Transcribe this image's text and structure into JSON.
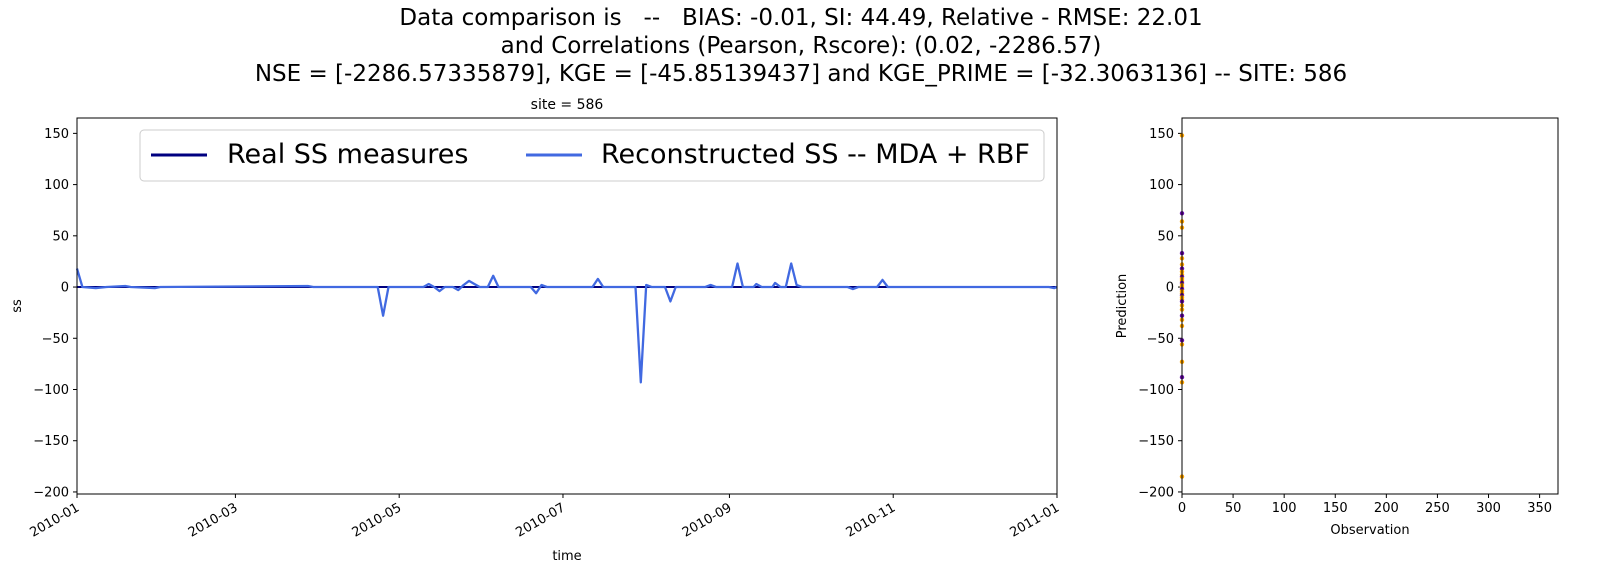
{
  "figure": {
    "title_lines": [
      "Data comparison is   --   BIAS: -0.01, SI: 44.49, Relative - RMSE: 22.01",
      "and Correlations (Pearson, Rscore): (0.02, -2286.57)",
      "NSE = [-2286.57335879], KGE = [-45.85139437] and KGE_PRIME = [-32.3063136] -- SITE: 586"
    ]
  },
  "colors": {
    "real": "#000080",
    "reconstructed": "#4169e1",
    "scatter_a": "#ffa500",
    "scatter_b": "#6a0dad"
  },
  "chart_data": [
    {
      "type": "line",
      "title": "site = 586",
      "xlabel": "time",
      "ylabel": "ss",
      "xlim": [
        "2010-01-01",
        "2011-01-01"
      ],
      "ylim": [
        -202,
        165
      ],
      "x_ticks": [
        "2010-01",
        "2010-03",
        "2010-05",
        "2010-07",
        "2010-09",
        "2010-11",
        "2011-01"
      ],
      "y_ticks": [
        150,
        100,
        50,
        0,
        -50,
        -100,
        -150,
        -200
      ],
      "legend": {
        "placement": "top-center",
        "columns": 2
      },
      "series": [
        {
          "name": "Real SS measures",
          "points": [
            [
              "2010-01-01",
              0
            ],
            [
              "2011-01-01",
              0
            ]
          ]
        },
        {
          "name": "Reconstructed SS -- MDA + RBF",
          "points": [
            [
              "2010-01-01",
              18
            ],
            [
              "2010-01-03",
              0
            ],
            [
              "2010-01-08",
              -1
            ],
            [
              "2010-01-12",
              0
            ],
            [
              "2010-01-19",
              1
            ],
            [
              "2010-01-21",
              0
            ],
            [
              "2010-01-30",
              -1
            ],
            [
              "2010-02-01",
              0
            ],
            [
              "2010-03-28",
              1
            ],
            [
              "2010-03-30",
              0
            ],
            [
              "2010-04-23",
              0
            ],
            [
              "2010-04-25",
              -28
            ],
            [
              "2010-04-27",
              0
            ],
            [
              "2010-05-10",
              0
            ],
            [
              "2010-05-12",
              3
            ],
            [
              "2010-05-14",
              0
            ],
            [
              "2010-05-16",
              -4
            ],
            [
              "2010-05-18",
              0
            ],
            [
              "2010-05-21",
              0
            ],
            [
              "2010-05-23",
              -3
            ],
            [
              "2010-05-25",
              2
            ],
            [
              "2010-05-27",
              6
            ],
            [
              "2010-05-29",
              3
            ],
            [
              "2010-05-31",
              0
            ],
            [
              "2010-06-03",
              0
            ],
            [
              "2010-06-05",
              11
            ],
            [
              "2010-06-07",
              0
            ],
            [
              "2010-06-19",
              0
            ],
            [
              "2010-06-21",
              -6
            ],
            [
              "2010-06-23",
              2
            ],
            [
              "2010-06-25",
              0
            ],
            [
              "2010-07-12",
              0
            ],
            [
              "2010-07-14",
              8
            ],
            [
              "2010-07-16",
              0
            ],
            [
              "2010-07-28",
              0
            ],
            [
              "2010-07-30",
              -93
            ],
            [
              "2010-08-01",
              2
            ],
            [
              "2010-08-03",
              0
            ],
            [
              "2010-08-08",
              0
            ],
            [
              "2010-08-10",
              -14
            ],
            [
              "2010-08-12",
              0
            ],
            [
              "2010-08-23",
              0
            ],
            [
              "2010-08-25",
              2
            ],
            [
              "2010-08-27",
              0
            ],
            [
              "2010-09-02",
              0
            ],
            [
              "2010-09-04",
              23
            ],
            [
              "2010-09-06",
              0
            ],
            [
              "2010-09-10",
              0
            ],
            [
              "2010-09-11",
              3
            ],
            [
              "2010-09-13",
              0
            ],
            [
              "2010-09-17",
              0
            ],
            [
              "2010-09-18",
              4
            ],
            [
              "2010-09-20",
              0
            ],
            [
              "2010-09-22",
              0
            ],
            [
              "2010-09-24",
              23
            ],
            [
              "2010-09-26",
              2
            ],
            [
              "2010-09-28",
              0
            ],
            [
              "2010-10-15",
              0
            ],
            [
              "2010-10-17",
              -2
            ],
            [
              "2010-10-19",
              0
            ],
            [
              "2010-10-26",
              0
            ],
            [
              "2010-10-28",
              7
            ],
            [
              "2010-10-30",
              0
            ],
            [
              "2010-12-29",
              0
            ],
            [
              "2010-12-31",
              -1
            ],
            [
              "2011-01-01",
              0
            ]
          ]
        }
      ]
    },
    {
      "type": "scatter",
      "xlabel": "Observation",
      "ylabel": "Prediction",
      "xlim": [
        0,
        368
      ],
      "ylim": [
        -202,
        165
      ],
      "x_ticks": [
        0,
        50,
        100,
        150,
        200,
        250,
        300,
        350
      ],
      "y_ticks": [
        150,
        100,
        50,
        0,
        -50,
        -100,
        -150,
        -200
      ],
      "points": [
        [
          0,
          148
        ],
        [
          0,
          72
        ],
        [
          0,
          64
        ],
        [
          0,
          58
        ],
        [
          0,
          33
        ],
        [
          0,
          28
        ],
        [
          0,
          22
        ],
        [
          0,
          18
        ],
        [
          0,
          15
        ],
        [
          0,
          12
        ],
        [
          0,
          10
        ],
        [
          0,
          8
        ],
        [
          0,
          6
        ],
        [
          0,
          4
        ],
        [
          0,
          2
        ],
        [
          0,
          0
        ],
        [
          0,
          -2
        ],
        [
          0,
          -4
        ],
        [
          0,
          -6
        ],
        [
          0,
          -8
        ],
        [
          0,
          -10
        ],
        [
          0,
          -12
        ],
        [
          0,
          -14
        ],
        [
          0,
          -18
        ],
        [
          0,
          -22
        ],
        [
          0,
          -28
        ],
        [
          0,
          -32
        ],
        [
          0,
          -38
        ],
        [
          0,
          -52
        ],
        [
          0,
          -56
        ],
        [
          0,
          -73
        ],
        [
          0,
          -88
        ],
        [
          0,
          -93
        ],
        [
          0,
          -185
        ]
      ]
    }
  ]
}
